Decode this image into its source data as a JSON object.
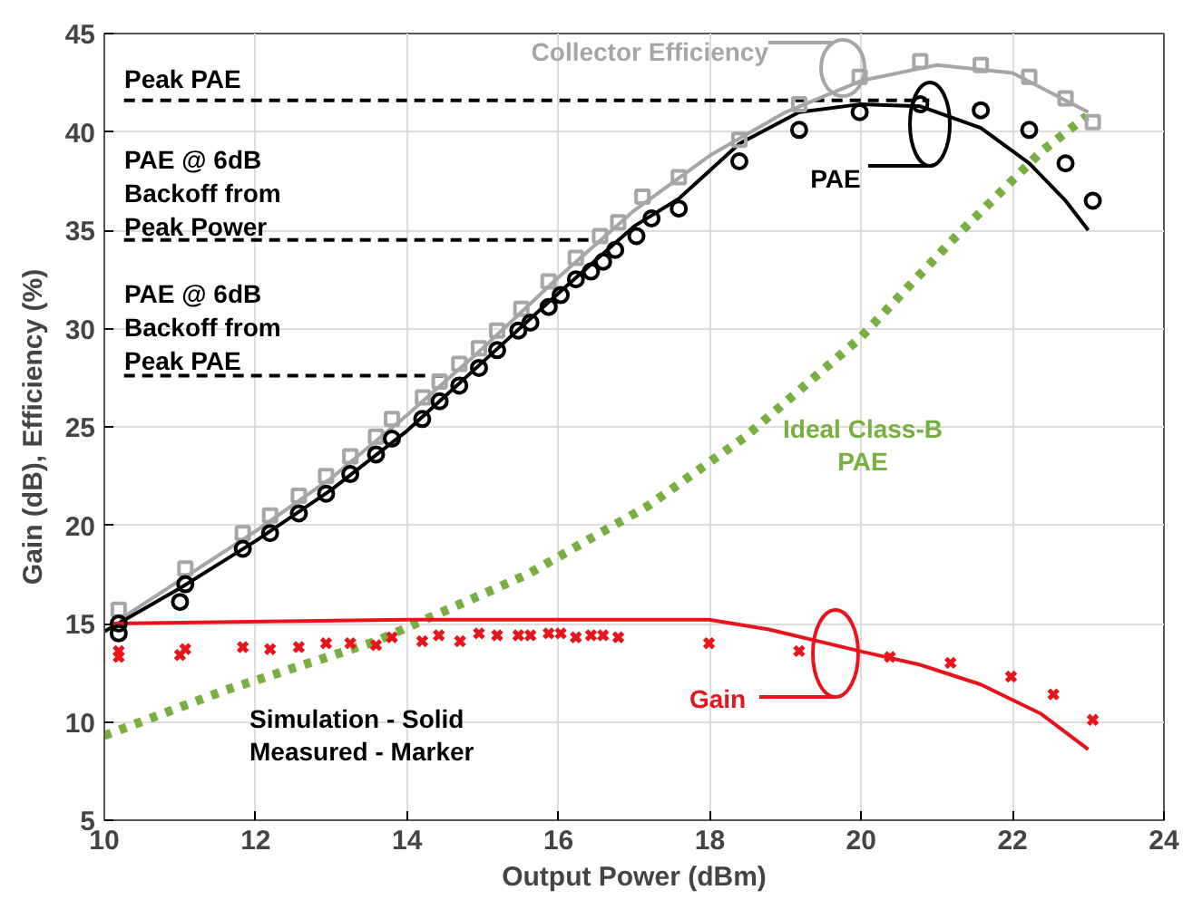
{
  "chart_data": {
    "type": "line",
    "xlabel": "Output Power (dBm)",
    "ylabel": "Gain (dB), Efficiency (%)",
    "xlim": [
      10,
      24
    ],
    "ylim": [
      5,
      45
    ],
    "xticks": [
      10,
      12,
      14,
      16,
      18,
      20,
      22,
      24
    ],
    "yticks": [
      5,
      10,
      15,
      20,
      25,
      30,
      35,
      40,
      45
    ],
    "grid": true,
    "series": [
      {
        "line_style": "dotted",
        "color": "#77b041",
        "x": [
          10.0,
          11.59,
          13.59,
          15.59,
          17.19,
          18.47,
          19.98,
          21.18,
          22.38,
          22.98
        ],
        "values": [
          9.3,
          11.6,
          14.1,
          17.5,
          21.0,
          24.5,
          29.5,
          34.4,
          39.0,
          40.8
        ]
      },
      {
        "line_style": "dashed",
        "color": "#000000",
        "x": [
          10.26,
          20.9
        ],
        "values": [
          41.6,
          41.6
        ]
      },
      {
        "line_style": "dashed",
        "color": "#000000",
        "x": [
          10.26,
          16.47
        ],
        "values": [
          34.5,
          34.5
        ]
      },
      {
        "line_style": "dashed",
        "color": "#000000",
        "x": [
          10.26,
          14.59
        ],
        "values": [
          27.6,
          27.6
        ]
      },
      {
        "line_style": "solid",
        "color": "#a6a6a6",
        "x": [
          10.2,
          11,
          12,
          13,
          14,
          15,
          16,
          17,
          18,
          19,
          20,
          21,
          22,
          23
        ],
        "values": [
          15.2,
          17.2,
          19.7,
          22.4,
          25.6,
          29.0,
          32.6,
          36.0,
          38.8,
          41.0,
          42.6,
          43.4,
          43.0,
          41.0
        ]
      },
      {
        "line_style": "solid",
        "color": "#000000",
        "x": [
          10.0,
          11,
          12,
          13,
          14,
          15,
          16,
          17,
          17.59,
          18.39,
          19.18,
          19.98,
          20.78,
          21.58,
          22.22,
          22.7,
          23.0
        ],
        "values": [
          14.6,
          16.8,
          19.2,
          21.8,
          24.8,
          28.3,
          31.8,
          35.2,
          36.6,
          39.4,
          41.0,
          41.4,
          41.3,
          40.2,
          38.4,
          36.5,
          35.0
        ]
      },
      {
        "line_style": "solid",
        "color": "#e8141c",
        "x": [
          10.1,
          14,
          16,
          16.79,
          17.99,
          18.78,
          19.98,
          20.78,
          21.58,
          22.38,
          23.0
        ],
        "values": [
          15.0,
          15.2,
          15.2,
          15.2,
          15.2,
          14.7,
          13.6,
          12.9,
          11.9,
          10.4,
          8.6
        ]
      },
      {
        "type": "scatter",
        "marker": "square",
        "color": "#a6a6a6",
        "x": [
          10.19,
          11.07,
          11.83,
          12.19,
          12.57,
          12.93,
          13.25,
          13.59,
          13.8,
          14.21,
          14.43,
          14.69,
          14.95,
          15.19,
          15.51,
          15.87,
          16.23,
          16.55,
          16.79,
          17.11,
          17.59,
          18.39,
          19.18,
          19.98,
          20.78,
          21.58,
          22.22,
          22.7,
          23.06
        ],
        "values": [
          15.7,
          17.8,
          19.6,
          20.5,
          21.5,
          22.5,
          23.5,
          24.5,
          25.4,
          26.5,
          27.3,
          28.2,
          29.0,
          29.9,
          31.0,
          32.4,
          33.6,
          34.7,
          35.4,
          36.7,
          37.7,
          39.6,
          41.4,
          42.8,
          43.6,
          43.4,
          42.8,
          41.7,
          40.5
        ]
      },
      {
        "type": "scatter",
        "marker": "circle",
        "color": "#000000",
        "x": [
          10.19,
          10.19,
          11.0,
          11.07,
          11.83,
          12.19,
          12.57,
          12.93,
          13.25,
          13.59,
          13.8,
          14.2,
          14.43,
          14.69,
          14.95,
          15.19,
          15.47,
          15.63,
          15.87,
          16.03,
          16.23,
          16.43,
          16.59,
          16.75,
          17.03,
          17.23,
          17.59,
          18.39,
          19.18,
          19.98,
          20.78,
          21.58,
          22.22,
          22.7,
          23.06
        ],
        "values": [
          14.5,
          15.0,
          16.1,
          17.0,
          18.8,
          19.6,
          20.6,
          21.6,
          22.6,
          23.6,
          24.4,
          25.4,
          26.3,
          27.1,
          28.0,
          28.9,
          29.9,
          30.3,
          31.1,
          31.7,
          32.5,
          32.9,
          33.4,
          34.0,
          34.7,
          35.6,
          36.1,
          38.5,
          40.1,
          41.0,
          41.4,
          41.1,
          40.1,
          38.4,
          36.5
        ]
      },
      {
        "type": "scatter",
        "marker": "cross",
        "color": "#e8141c",
        "x": [
          10.19,
          10.19,
          11.0,
          11.07,
          11.83,
          12.19,
          12.57,
          12.93,
          13.25,
          13.59,
          13.8,
          14.2,
          14.42,
          14.7,
          14.95,
          15.19,
          15.47,
          15.63,
          15.87,
          16.03,
          16.23,
          16.43,
          16.59,
          16.79,
          17.99,
          19.18,
          20.38,
          21.18,
          21.98,
          22.54,
          23.06
        ],
        "values": [
          13.6,
          13.3,
          13.4,
          13.7,
          13.8,
          13.7,
          13.8,
          14.0,
          14.0,
          13.9,
          14.3,
          14.1,
          14.4,
          14.1,
          14.5,
          14.4,
          14.4,
          14.4,
          14.5,
          14.5,
          14.3,
          14.4,
          14.4,
          14.3,
          14.0,
          13.6,
          13.3,
          13.0,
          12.3,
          11.4,
          10.1
        ]
      }
    ],
    "annotations": [
      "Collector Efficiency",
      "PAE",
      "Gain",
      "Ideal Class-B\nPAE",
      "Peak PAE",
      "PAE @ 6dB\nBackoff from\nPeak Power",
      "PAE @ 6dB\nBackoff from\nPeak PAE",
      "Simulation - Solid\nMeasured - Marker"
    ]
  }
}
